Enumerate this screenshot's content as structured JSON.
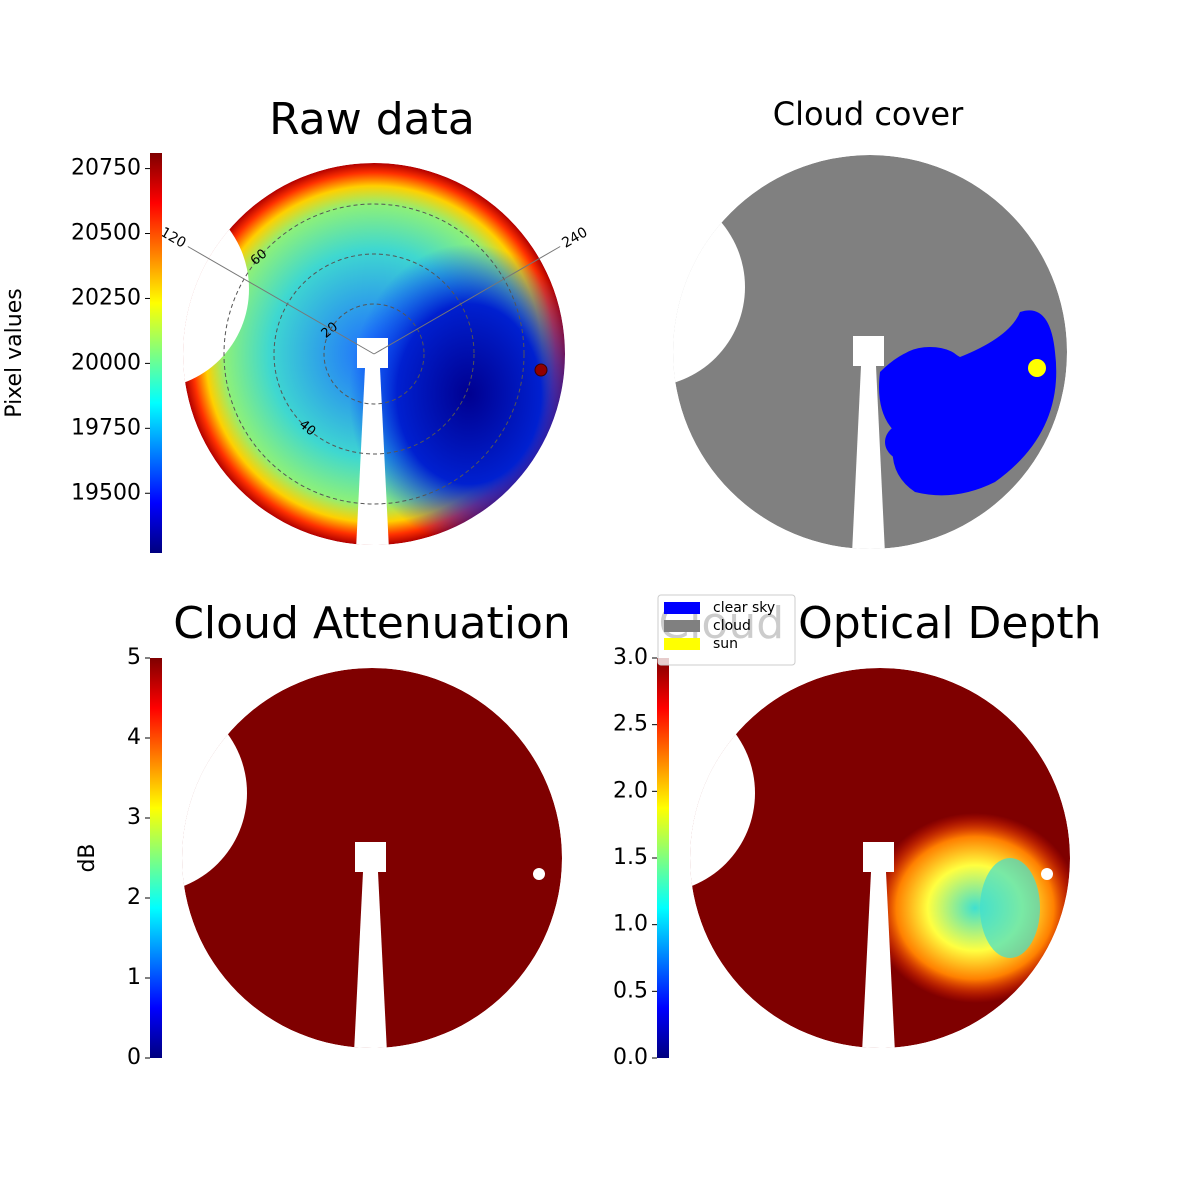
{
  "chart_data": [
    {
      "type": "image",
      "title": "Raw data",
      "colorbar": {
        "label": "Pixel values",
        "ylim": [
          19270,
          20810
        ],
        "yticks": [
          19500,
          19750,
          20000,
          20250,
          20500,
          20750
        ]
      },
      "polar_grid": {
        "rings": [
          20,
          40,
          60
        ],
        "spokes": [
          120,
          240
        ]
      }
    },
    {
      "type": "image",
      "title": "Cloud cover",
      "legend": [
        {
          "label": "clear sky",
          "color": "#0000ff"
        },
        {
          "label": "cloud",
          "color": "#808080"
        },
        {
          "label": "sun",
          "color": "#ffff00"
        }
      ]
    },
    {
      "type": "image",
      "title": "Cloud Attenuation",
      "colorbar": {
        "label": "dB",
        "ylim": [
          0,
          5
        ],
        "yticks": [
          0,
          1,
          2,
          3,
          4,
          5
        ]
      }
    },
    {
      "type": "image",
      "title": "Cloud Optical Depth",
      "colorbar": {
        "ylim": [
          0,
          3
        ],
        "yticks": [
          {
            "value": 0,
            "label": "0.0"
          },
          {
            "value": 0.5,
            "label": "0.5"
          },
          {
            "value": 1,
            "label": "1.0"
          },
          {
            "value": 1.5,
            "label": "1.5"
          },
          {
            "value": 2,
            "label": "2.0"
          },
          {
            "value": 2.5,
            "label": "2.5"
          },
          {
            "value": 3,
            "label": "3.0"
          }
        ]
      }
    }
  ]
}
